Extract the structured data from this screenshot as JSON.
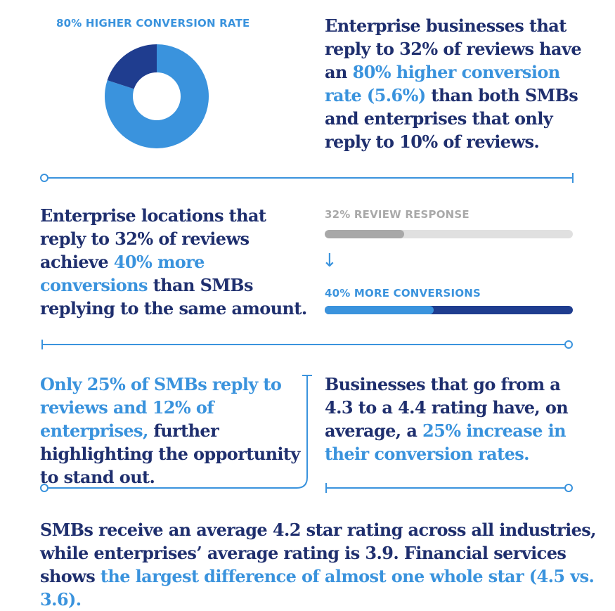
{
  "donut": {
    "label": "80% HIGHER CONVERSION RATE"
  },
  "blocks": {
    "p1": {
      "a": "Enterprise businesses that reply to 32% of reviews have an ",
      "b": "80% higher conversion rate (5.6%)",
      "c": " than both SMBs and enterprises that only reply to 10% of reviews."
    },
    "p2": {
      "a": "Enterprise locations that reply to 32% of reviews achieve ",
      "b": "40% more conversions",
      "c": " than SMBs replying to the same amount."
    },
    "p3": {
      "b": "Only 25% of SMBs reply to reviews and 12% of enterprises,",
      "c": " further highlighting the opportunity to stand out."
    },
    "p4": {
      "a": "Businesses that go from a 4.3 to a 4.4 rating have, on average, a ",
      "b": "25% increase in their conversion rates."
    },
    "p5": {
      "a": "SMBs receive an average 4.2 star rating across all industries, while enterprises’ average rating is 3.9. Financial services shows ",
      "b": "the largest difference of almost one whole star (4.5 vs. 3.6)."
    }
  },
  "bars": {
    "top_label": "32% REVIEW RESPONSE",
    "bottom_label": "40% MORE CONVERSIONS",
    "arrow": "↓"
  },
  "chart_data": [
    {
      "type": "pie",
      "title": "80% HIGHER CONVERSION RATE",
      "slices": [
        {
          "value": 80,
          "color": "#3a93dd"
        },
        {
          "value": 20,
          "color": "#1f3d8f"
        }
      ]
    },
    {
      "type": "bar",
      "orientation": "horizontal",
      "bars": [
        {
          "label": "32% REVIEW RESPONSE",
          "value": 32,
          "max": 100,
          "color": "#a8a8a8",
          "track": "#e0e0e0"
        },
        {
          "label": "40% MORE CONVERSIONS",
          "value": 44,
          "max": 100,
          "color": "#3a93dd",
          "track": "#1f3d8f"
        }
      ]
    }
  ],
  "colors": {
    "navy": "#1f2f6e",
    "accent": "#3a93dd",
    "line": "#3a93dd"
  }
}
